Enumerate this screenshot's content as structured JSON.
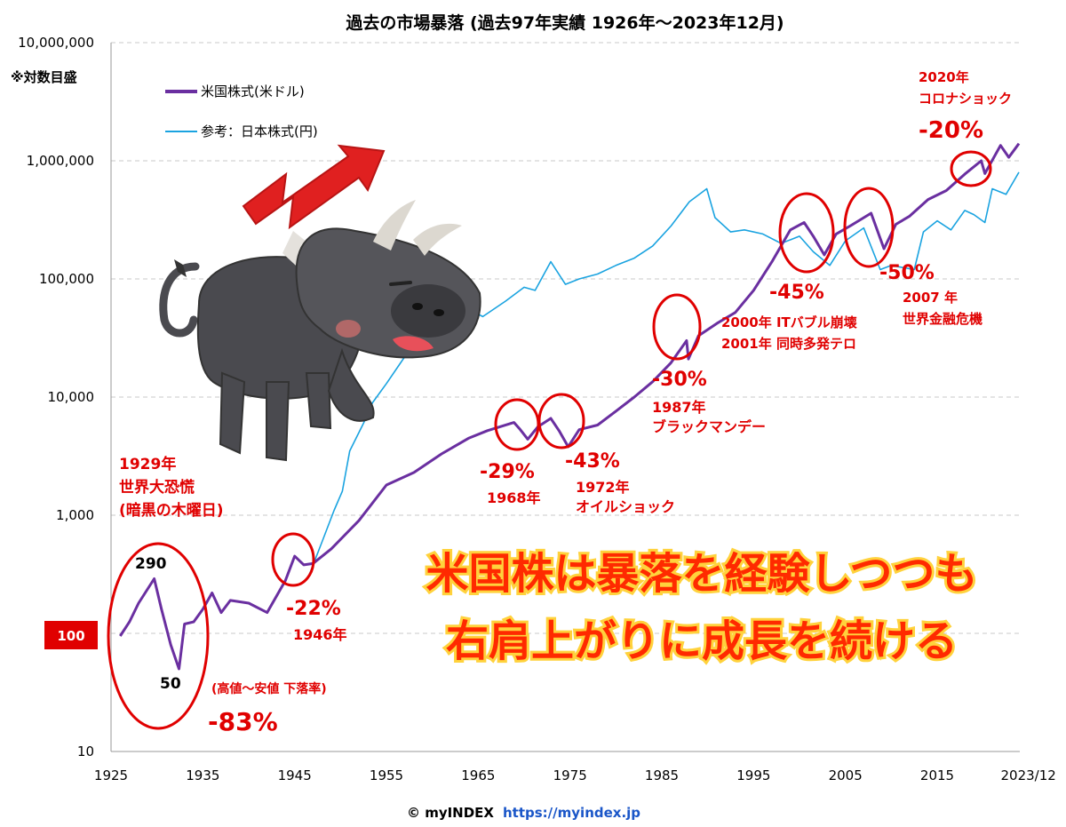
{
  "chart_data": {
    "type": "line",
    "title": "過去の市場暴落 (過去97年実績 1926年〜2023年12月)",
    "scale_note": "※対数目盛",
    "y_scale": "log",
    "ylim": [
      10,
      10000000
    ],
    "y_ticks": [
      "10",
      "1,000",
      "10,000",
      "100,000",
      "1,000,000",
      "10,000,000"
    ],
    "xlim": [
      1925,
      2024
    ],
    "x_ticks": [
      "1925",
      "1935",
      "1945",
      "1955",
      "1965",
      "1975",
      "1985",
      "1995",
      "2005",
      "2015",
      "2023/12"
    ],
    "baseline_label": "100",
    "grid": true,
    "legend_position": "top-left",
    "legend": [
      {
        "name": "米国株式(米ドル)",
        "color": "#6a2fa0"
      },
      {
        "name": "参考：日本株式(円)",
        "color": "#1aa3e0"
      }
    ],
    "series": [
      {
        "name": "米国株式(米ドル)",
        "color": "#6a2fa0",
        "x": [
          1926,
          1927,
          1928,
          1929.7,
          1930.5,
          1931.5,
          1932.4,
          1933,
          1934,
          1935,
          1936,
          1937,
          1938,
          1940,
          1942,
          1944,
          1945,
          1946,
          1947,
          1949,
          1952,
          1955,
          1958,
          1961,
          1964,
          1966,
          1968.9,
          1969.5,
          1970.4,
          1971.5,
          1972.9,
          1973.8,
          1974.8,
          1976,
          1978,
          1980,
          1982,
          1984,
          1986,
          1987.7,
          1987.9,
          1989,
          1991,
          1993,
          1995,
          1997,
          1999,
          2000.5,
          2001.5,
          2002.7,
          2004,
          2005.5,
          2007.8,
          2009.2,
          2010.5,
          2012,
          2014,
          2016,
          2018,
          2019.8,
          2020.2,
          2021.9,
          2022.8,
          2023.9
        ],
        "values": [
          95,
          125,
          180,
          290,
          160,
          80,
          50,
          120,
          125,
          160,
          220,
          150,
          190,
          180,
          150,
          280,
          450,
          380,
          390,
          520,
          900,
          1800,
          2300,
          3300,
          4500,
          5200,
          6100,
          5400,
          4400,
          5600,
          6600,
          5200,
          3800,
          5300,
          5800,
          7600,
          10000,
          13500,
          19500,
          30000,
          21000,
          33000,
          42000,
          52000,
          80000,
          140000,
          260000,
          300000,
          230000,
          160000,
          240000,
          280000,
          360000,
          180000,
          290000,
          340000,
          470000,
          560000,
          770000,
          1000000,
          780000,
          1350000,
          1070000,
          1400000
        ]
      },
      {
        "name": "参考：日本株式(円)",
        "color": "#1aa3e0",
        "x": [
          1946.5,
          1948,
          1949.3,
          1950.2,
          1951,
          1952.5,
          1953.5,
          1955,
          1957,
          1959,
          1961.5,
          1962.5,
          1964,
          1965.5,
          1968,
          1970,
          1971.2,
          1972.9,
          1974.5,
          1976,
          1978,
          1980,
          1982,
          1984,
          1986,
          1988,
          1989.9,
          1990.8,
          1992.5,
          1994,
          1996,
          1998,
          2000,
          2001.5,
          2003.3,
          2005,
          2007,
          2008.8,
          2010,
          2012.5,
          2013.5,
          2015,
          2016.5,
          2018,
          2019,
          2020.2,
          2021,
          2022.5,
          2023.9
        ],
        "values": [
          300,
          600,
          1100,
          1600,
          3500,
          6000,
          9000,
          13000,
          22000,
          35000,
          75000,
          60000,
          55000,
          48000,
          65000,
          85000,
          80000,
          140000,
          90000,
          100000,
          110000,
          130000,
          150000,
          190000,
          280000,
          450000,
          580000,
          330000,
          250000,
          260000,
          240000,
          200000,
          230000,
          170000,
          130000,
          210000,
          270000,
          120000,
          130000,
          120000,
          250000,
          310000,
          260000,
          380000,
          350000,
          300000,
          580000,
          520000,
          800000
        ]
      }
    ],
    "annotations": [
      {
        "lines": [
          "1929年",
          "世界大恐慌",
          "(暗黒の木曜日)"
        ]
      },
      {
        "lines": [
          "290"
        ]
      },
      {
        "lines": [
          "50"
        ]
      },
      {
        "lines": [
          "(高値〜安値 下落率)"
        ]
      },
      {
        "lines": [
          "-83%"
        ]
      },
      {
        "lines": [
          "-22%"
        ]
      },
      {
        "lines": [
          "1946年"
        ]
      },
      {
        "lines": [
          "-29%"
        ]
      },
      {
        "lines": [
          "1968年"
        ]
      },
      {
        "lines": [
          "-43%"
        ]
      },
      {
        "lines": [
          "1972年",
          "オイルショック"
        ]
      },
      {
        "lines": [
          "-30%"
        ]
      },
      {
        "lines": [
          "1987年",
          "ブラックマンデー"
        ]
      },
      {
        "lines": [
          "-45%"
        ]
      },
      {
        "lines": [
          "2000年 ITバブル崩壊",
          "2001年 同時多発テロ"
        ]
      },
      {
        "lines": [
          "-50%"
        ]
      },
      {
        "lines": [
          "2007 年",
          "世界金融危機"
        ]
      },
      {
        "lines": [
          "2020年",
          "コロナショック"
        ]
      },
      {
        "lines": [
          "-20%"
        ]
      }
    ],
    "message": [
      "米国株は暴落を経験しつつも",
      "右肩上がりに成長を続ける"
    ]
  },
  "footer": {
    "copyright": "© myINDEX",
    "url": "https://myindex.jp"
  },
  "colors": {
    "us_line": "#6a2fa0",
    "jp_line": "#1aa3e0",
    "accent_red": "#e00000",
    "message_fill": "#ff2a00",
    "message_outline": "#ffd23c",
    "arrow": "#e02020",
    "bull_body": "#4a4a4f"
  },
  "illustrations": [
    "bull-icon",
    "up-arrow-icon"
  ]
}
